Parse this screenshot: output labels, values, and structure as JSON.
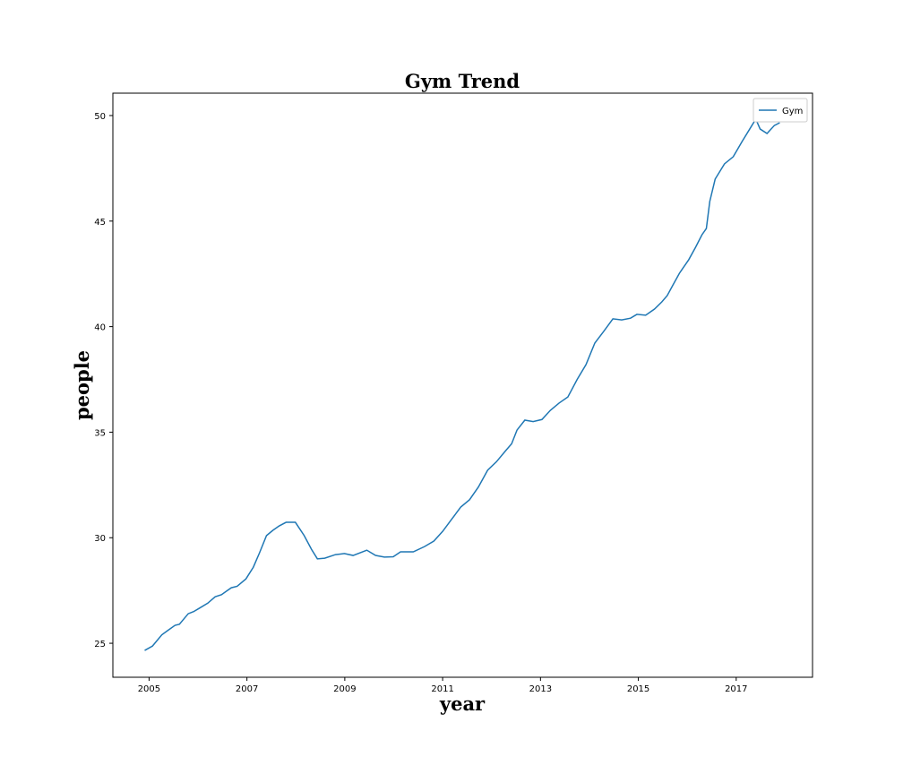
{
  "chart_data": {
    "type": "line",
    "title": "Gym Trend",
    "x_label": "year",
    "y_label": "people",
    "x": [
      2004.91,
      2005.07,
      2005.26,
      2005.38,
      2005.53,
      2005.62,
      2005.8,
      2005.91,
      2006.02,
      2006.2,
      2006.35,
      2006.48,
      2006.68,
      2006.8,
      2006.98,
      2007.13,
      2007.26,
      2007.4,
      2007.53,
      2007.66,
      2007.8,
      2007.99,
      2008.17,
      2008.32,
      2008.44,
      2008.59,
      2008.81,
      2008.99,
      2009.17,
      2009.45,
      2009.63,
      2009.81,
      2009.99,
      2010.14,
      2010.4,
      2010.63,
      2010.82,
      2011.0,
      2011.18,
      2011.37,
      2011.55,
      2011.73,
      2011.92,
      2012.1,
      2012.28,
      2012.41,
      2012.52,
      2012.68,
      2012.85,
      2013.03,
      2013.2,
      2013.38,
      2013.56,
      2013.75,
      2013.93,
      2014.11,
      2014.29,
      2014.48,
      2014.66,
      2014.84,
      2014.97,
      2015.15,
      2015.33,
      2015.48,
      2015.59,
      2015.7,
      2015.84,
      2016.03,
      2016.17,
      2016.3,
      2016.39,
      2016.46,
      2016.57,
      2016.76,
      2016.94,
      2017.12,
      2017.3,
      2017.4,
      2017.49,
      2017.63,
      2017.78,
      2017.89
    ],
    "series": [
      {
        "name": "Gym",
        "color": "#1f77b4",
        "values": [
          24.66,
          24.87,
          25.4,
          25.6,
          25.85,
          25.9,
          26.4,
          26.5,
          26.65,
          26.9,
          27.2,
          27.3,
          27.63,
          27.7,
          28.05,
          28.6,
          29.3,
          30.1,
          30.35,
          30.56,
          30.73,
          30.73,
          30.1,
          29.45,
          29.0,
          29.03,
          29.2,
          29.25,
          29.16,
          29.41,
          29.16,
          29.08,
          29.1,
          29.33,
          29.33,
          29.58,
          29.84,
          30.3,
          30.86,
          31.45,
          31.8,
          32.4,
          33.2,
          33.6,
          34.1,
          34.45,
          35.1,
          35.57,
          35.5,
          35.6,
          36.03,
          36.38,
          36.67,
          37.5,
          38.2,
          39.22,
          39.77,
          40.37,
          40.32,
          40.4,
          40.58,
          40.54,
          40.83,
          41.17,
          41.47,
          41.94,
          42.53,
          43.17,
          43.76,
          44.35,
          44.65,
          45.93,
          46.99,
          47.71,
          48.05,
          48.77,
          49.45,
          49.83,
          49.36,
          49.15,
          49.53,
          49.66
        ]
      }
    ],
    "xlim": [
      2004.26,
      2018.56
    ],
    "xticks": [
      2005,
      2007,
      2009,
      2011,
      2013,
      2015,
      2017
    ],
    "ylim": [
      23.39,
      51.06
    ],
    "yticks": [
      25,
      30,
      35,
      40,
      45,
      50
    ],
    "grid": false,
    "legend": "upper right"
  }
}
